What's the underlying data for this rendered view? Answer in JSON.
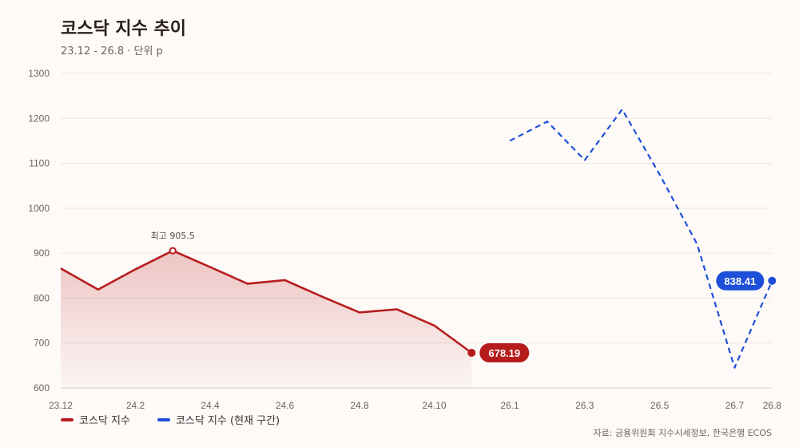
{
  "title": "코스닥 지수 추이",
  "subtitle": "23.12 - 26.8 · 단위 p",
  "source": "자료: 금융위원회 지수시세정보, 한국은행 ECOS",
  "colors": {
    "red": "#b71c1c",
    "blue": "#1e4fd8",
    "grid": "#ece6e4",
    "axis_text": "#6e6363"
  },
  "chart_data": {
    "type": "line",
    "title": "코스닥 지수 추이",
    "ylim": [
      600,
      1300
    ],
    "y_ticks": [
      "600",
      "700",
      "800",
      "900",
      "1000",
      "1100",
      "1200",
      "1300"
    ],
    "x_tick_labels": [
      "23.12",
      "24.2",
      "24.4",
      "24.6",
      "24.8",
      "24.10",
      "26.1",
      "26.3",
      "26.5",
      "26.7",
      "26.8"
    ],
    "series": [
      {
        "name": "코스닥 지수",
        "color": "#b71c1c",
        "style": "solid",
        "x": [
          "23.12",
          "24.1",
          "24.2",
          "24.3",
          "24.4",
          "24.5",
          "24.6",
          "24.7",
          "24.8",
          "24.9",
          "24.10",
          "24.11"
        ],
        "values": [
          866,
          819,
          864,
          905.5,
          869,
          832,
          840,
          803,
          768,
          775,
          739,
          678.19
        ]
      },
      {
        "name": "코스닥 지수 (현재 구간)",
        "color": "#1e4fd8",
        "style": "dashed",
        "x": [
          "26.1",
          "26.2",
          "26.3",
          "26.4",
          "26.5",
          "26.6",
          "26.7",
          "26.8"
        ],
        "values": [
          1150,
          1193,
          1107,
          1220,
          1075,
          920,
          645,
          838.41
        ]
      }
    ],
    "annotations": [
      {
        "series": 0,
        "point": 3,
        "text": "최고 905.5"
      }
    ],
    "end_labels": [
      "678.19",
      "838.41"
    ],
    "legend": "bottom-left",
    "grid": true
  }
}
